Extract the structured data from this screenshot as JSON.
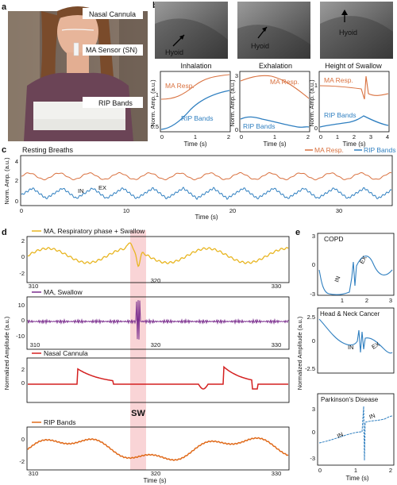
{
  "panels": {
    "a": {
      "letter": "a",
      "labels": [
        "Nasal Cannula",
        "MA Sensor (SN)",
        "RIP Bands"
      ]
    },
    "b": {
      "letter": "b",
      "xray_labels": [
        "Hyoid",
        "Hyoid",
        "Hyoid"
      ],
      "ylabel": "Norm. Amp. (a.u.)",
      "xlabel": "Time (s)",
      "subplots": [
        {
          "title": "Inhalation",
          "ma_label": "MA Resp.",
          "rip_label": "RIP Bands",
          "xticks": [
            "0",
            "1",
            "2"
          ],
          "yticks": [
            "1",
            "0.5"
          ]
        },
        {
          "title": "Exhalation",
          "ma_label": "MA Resp.",
          "rip_label": "RIP Bands",
          "xticks": [
            "0",
            "1",
            "2"
          ],
          "yticks": [
            "3",
            "0"
          ]
        },
        {
          "title": "Height of Swallow",
          "ma_label": "MA Resp.",
          "rip_label": "RIP Bands",
          "xticks": [
            "0",
            "1",
            "2",
            "3",
            "4"
          ],
          "yticks": [
            "1",
            "0"
          ]
        }
      ]
    },
    "c": {
      "letter": "c",
      "title": "Resting Breaths",
      "legend": [
        "MA Resp.",
        "RIP Bands"
      ],
      "ylabel": "Norm. Amp. (a.u.)",
      "xlabel": "Time (s)",
      "xticks": [
        "0",
        "10",
        "20",
        "30"
      ],
      "yticks": [
        "4",
        "2",
        "0"
      ],
      "annotations": [
        "IN",
        "EX"
      ]
    },
    "d": {
      "letter": "d",
      "ylabel": "Normalized Amplitude (a.u.)",
      "xlabel": "Time (s)",
      "sw_label": "SW",
      "rows": [
        {
          "legend": "MA, Respiratory phase + Swallow",
          "yticks": [
            "2",
            "0",
            "-2"
          ],
          "xticks": [
            "310",
            "320",
            "330"
          ]
        },
        {
          "legend": "MA, Swallow",
          "yticks": [
            "10",
            "0",
            "-10"
          ],
          "xticks": [
            "310",
            "320",
            "330"
          ]
        },
        {
          "legend": "Nasal Cannula",
          "yticks": [
            "2",
            "0"
          ],
          "xticks": []
        },
        {
          "legend": "RIP Bands",
          "yticks": [
            "0",
            "-2"
          ],
          "xticks": [
            "310",
            "320",
            "330"
          ]
        }
      ]
    },
    "e": {
      "letter": "e",
      "ylabel": "Normalized Amplitude (a.u.)",
      "xlabel": "Time (s)",
      "subplots": [
        {
          "title": "COPD",
          "yticks": [
            "3",
            "0",
            "-3"
          ],
          "xticks": [
            "1",
            "2",
            "3"
          ],
          "annotations": [
            "IN",
            "EX"
          ]
        },
        {
          "title": "Head & Neck Cancer",
          "yticks": [
            "2.5",
            "0",
            "-2.5"
          ],
          "xticks": [],
          "annotations": [
            "IN",
            "EX"
          ]
        },
        {
          "title": "Parkinson's Disease",
          "yticks": [
            "3",
            "0",
            "-3"
          ],
          "xticks": [
            "0",
            "1",
            "2"
          ],
          "annotations": [
            "IN",
            "IN"
          ]
        }
      ]
    }
  },
  "colors": {
    "ma_resp": "#d9713f",
    "rip": "#2f7fc0",
    "ma_swallow_respiratory": "#e8b520",
    "ma_swallow": "#7b2e8e",
    "nasal": "#d42020",
    "rip_d": "#e06a1a",
    "sw_band": "#f7c9cc"
  }
}
